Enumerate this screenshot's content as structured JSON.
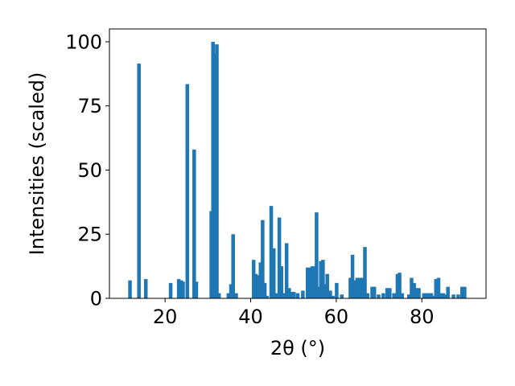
{
  "chart_data": {
    "type": "bar",
    "xlabel": "2θ (°)",
    "ylabel": "Intensities (scaled)",
    "xlim": [
      7,
      95
    ],
    "ylim": [
      0,
      105
    ],
    "xticks": [
      20,
      40,
      60,
      80
    ],
    "yticks": [
      0,
      25,
      50,
      75,
      100
    ],
    "bar_color": "#1f77b4",
    "bar_width": 0.85,
    "x": [
      11.8,
      13.9,
      15.5,
      21.3,
      23.2,
      23.8,
      24.2,
      25.2,
      26.8,
      27.3,
      30.8,
      31.2,
      31.7,
      32.1,
      32.6,
      34.8,
      35.4,
      35.9,
      36.6,
      40.7,
      41.2,
      41.8,
      42.3,
      42.8,
      43.3,
      43.8,
      44.8,
      45.4,
      45.9,
      46.7,
      47.2,
      47.8,
      48.4,
      49.0,
      49.6,
      50.1,
      51.0,
      52.2,
      53.3,
      53.9,
      54.4,
      54.9,
      55.4,
      55.9,
      56.4,
      56.9,
      57.4,
      57.9,
      58.6,
      59.2,
      60.1,
      61.3,
      63.3,
      63.8,
      64.3,
      64.9,
      65.6,
      66.2,
      66.7,
      67.3,
      68.4,
      68.9,
      69.9,
      71.0,
      71.9,
      72.5,
      73.5,
      74.3,
      74.8,
      75.4,
      77.0,
      77.6,
      78.2,
      78.7,
      79.3,
      80.5,
      81.1,
      81.7,
      82.2,
      82.8,
      83.3,
      83.9,
      84.4,
      85.0,
      85.5,
      86.1,
      87.4,
      88.5,
      89.4,
      90.0
    ],
    "values": [
      7,
      91.5,
      7.5,
      6,
      7.5,
      7,
      6.5,
      83.5,
      58,
      6.5,
      34,
      100,
      95.5,
      99,
      2,
      2,
      5.5,
      25,
      2,
      15,
      9.5,
      9,
      14,
      30.5,
      6,
      1,
      36,
      19.5,
      2,
      31.5,
      12.5,
      2,
      21.5,
      4,
      2.5,
      2.5,
      2,
      3,
      12,
      12,
      12.5,
      12.5,
      33.5,
      4.5,
      14.5,
      15,
      5.5,
      9.5,
      3,
      1,
      6,
      1.5,
      8,
      17,
      7,
      8,
      8,
      8,
      20,
      2,
      4.5,
      4.5,
      1.5,
      2,
      4,
      4,
      2,
      9.5,
      10,
      2,
      1.5,
      8,
      6,
      4,
      4,
      2,
      2,
      2,
      2,
      1,
      7.5,
      8,
      2,
      2,
      1.5,
      4.5,
      1.5,
      1.5,
      4.5,
      4.5
    ]
  }
}
